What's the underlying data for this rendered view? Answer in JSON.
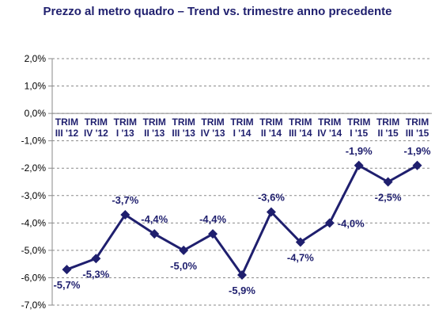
{
  "chart_data": {
    "type": "line",
    "title": "Prezzo al metro quadro – Trend vs. trimestre anno precedente",
    "categories": [
      [
        "TRIM",
        "III '12"
      ],
      [
        "TRIM",
        "IV '12"
      ],
      [
        "TRIM",
        "I '13"
      ],
      [
        "TRIM",
        "II '13"
      ],
      [
        "TRIM",
        "III '13"
      ],
      [
        "TRIM",
        "IV '13"
      ],
      [
        "TRIM",
        "I '14"
      ],
      [
        "TRIM",
        "II '14"
      ],
      [
        "TRIM",
        "III '14"
      ],
      [
        "TRIM",
        "IV '14"
      ],
      [
        "TRIM",
        "I '15"
      ],
      [
        "TRIM",
        "II '15"
      ],
      [
        "TRIM",
        "III '15"
      ]
    ],
    "series": [
      {
        "values": [
          -5.7,
          -5.3,
          -3.7,
          -4.4,
          -5.0,
          -4.4,
          -5.9,
          -3.6,
          -4.7,
          -4.0,
          -1.9,
          -2.5,
          -1.9
        ],
        "labels": [
          "-5,7%",
          "-5,3%",
          "-3,7%",
          "-4,4%",
          "-5,0%",
          "-4,4%",
          "-5,9%",
          "-3,6%",
          "-4,7%",
          "-4,0%",
          "-1,9%",
          "-2,5%",
          "-1,9%"
        ],
        "label_position": [
          "below",
          "below",
          "above",
          "above",
          "below",
          "above",
          "below",
          "above",
          "below",
          "right",
          "above",
          "below",
          "above"
        ]
      }
    ],
    "y_ticks": [
      2.0,
      1.0,
      0.0,
      -1.0,
      -2.0,
      -3.0,
      -4.0,
      -5.0,
      -6.0,
      -7.0
    ],
    "y_tick_labels": [
      "2,0%",
      "1,0%",
      "0,0%",
      "-1,0%",
      "-2,0%",
      "-3,0%",
      "-4,0%",
      "-5,0%",
      "-6,0%",
      "-7,0%"
    ],
    "ylim": [
      -7.0,
      2.0
    ],
    "grid": "horizontal dashed",
    "colors": {
      "line": "#1f1f6e",
      "text": "#1f1f6e",
      "grid": "#8a8a8a",
      "axis": "#8a8a8a"
    }
  }
}
